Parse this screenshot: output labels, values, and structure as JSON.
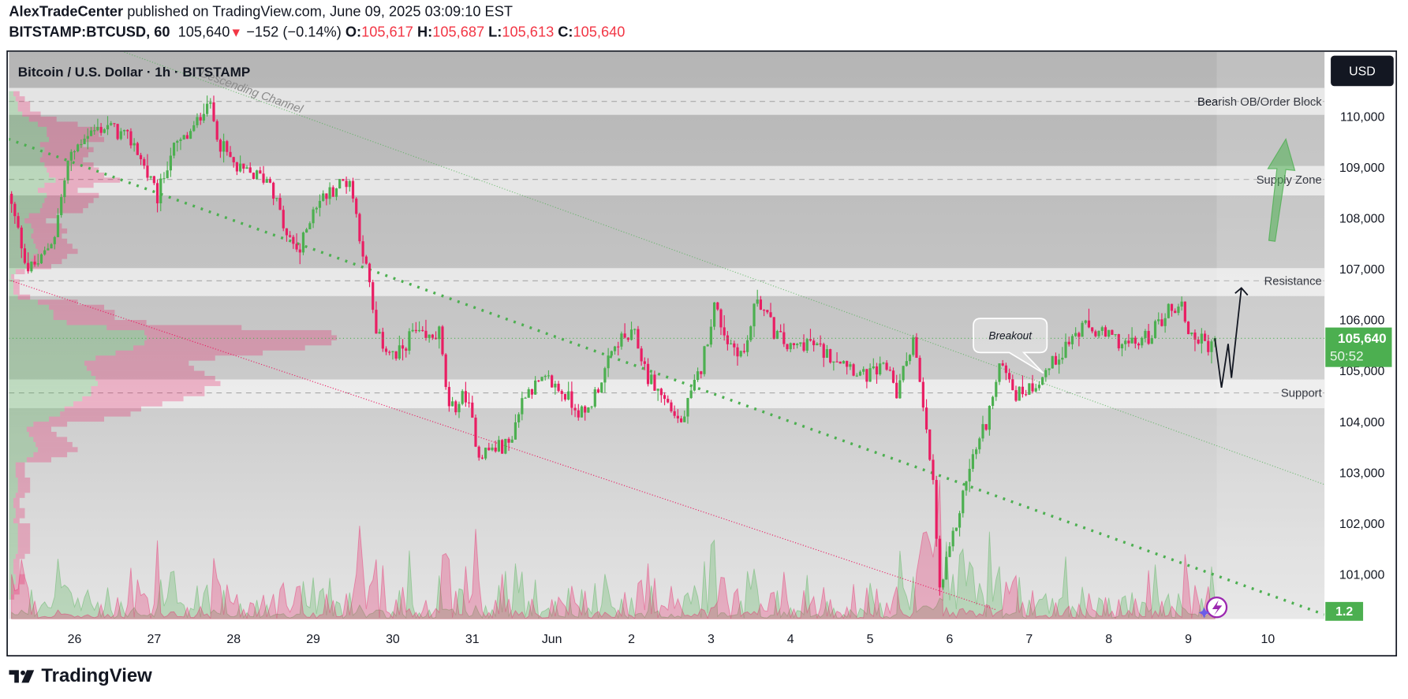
{
  "header": {
    "author": "AlexTradeCenter",
    "published": " published on TradingView.com, June 09, 2025 03:09:10 EST",
    "symbol": "BITSTAMP:BTCUSD, 60",
    "last": "105,640",
    "change": "−152 (−0.14%)",
    "o_label": "O:",
    "o": "105,617",
    "h_label": "H:",
    "h": "105,687",
    "l_label": "L:",
    "l": "105,613",
    "c_label": "C:",
    "c": "105,640"
  },
  "chart": {
    "title": "Bitcoin / U.S. Dollar · 1h · BITSTAMP",
    "currency_button": "USD",
    "channel_label": "Descending Channel",
    "breakout_label": "Breakout",
    "current_price": "105,640",
    "countdown": "50:52",
    "volume_label": "1.2"
  },
  "footer": {
    "logo": "TradingView"
  },
  "colors": {
    "up": "#4caf50",
    "down": "#e91e63",
    "header_red": "#f23645",
    "current_price_badge": "#4caf50",
    "currency_button_bg": "#131722",
    "assistant_icon": "#9c27b0"
  },
  "icons": [
    "tradingview-logo-icon",
    "lightning-assistant-icon",
    "down-triangle-icon",
    "up-arrow-icon"
  ],
  "chart_data": {
    "type": "candlestick",
    "interval": "1h",
    "ylim": [
      100300,
      111700
    ],
    "price_ticks": [
      "110,000",
      "109,000",
      "108,000",
      "107,000",
      "106,000",
      "105,000",
      "104,000",
      "103,000",
      "102,000",
      "101,000"
    ],
    "time_ticks": [
      "26",
      "27",
      "28",
      "29",
      "30",
      "31",
      "Jun",
      "2",
      "3",
      "4",
      "5",
      "6",
      "7",
      "8",
      "9",
      "10"
    ],
    "last_close": 105640,
    "price_path": [
      [
        "2025-05-25T05:00",
        108235
      ],
      [
        "2025-05-25T10:00",
        107000
      ],
      [
        "2025-05-25T14:00",
        107180
      ],
      [
        "2025-05-25T18:00",
        107700
      ],
      [
        "2025-05-25T22:00",
        109100
      ],
      [
        "2025-05-26T03:00",
        109650
      ],
      [
        "2025-05-26T10:00",
        109820
      ],
      [
        "2025-05-26T18:00",
        109470
      ],
      [
        "2025-05-27T01:00",
        108400
      ],
      [
        "2025-05-27T05:00",
        109300
      ],
      [
        "2025-05-27T12:00",
        109740
      ],
      [
        "2025-05-27T16:00",
        110350
      ],
      [
        "2025-05-27T20:00",
        109470
      ],
      [
        "2025-05-28T01:00",
        108940
      ],
      [
        "2025-05-28T11:00",
        108760
      ],
      [
        "2025-05-28T16:00",
        107620
      ],
      [
        "2025-05-28T20:00",
        107350
      ],
      [
        "2025-05-29T00:00",
        108240
      ],
      [
        "2025-05-29T08:00",
        108680
      ],
      [
        "2025-05-29T11:00",
        108760
      ],
      [
        "2025-05-29T14:00",
        107700
      ],
      [
        "2025-05-29T17:00",
        106650
      ],
      [
        "2025-05-29T19:00",
        105680
      ],
      [
        "2025-05-30T01:00",
        105240
      ],
      [
        "2025-05-30T06:00",
        105760
      ],
      [
        "2025-05-30T10:00",
        105590
      ],
      [
        "2025-05-30T14:00",
        105760
      ],
      [
        "2025-05-30T17:00",
        104180
      ],
      [
        "2025-05-30T22:00",
        104530
      ],
      [
        "2025-05-31T02:00",
        103380
      ],
      [
        "2025-05-31T11:00",
        103560
      ],
      [
        "2025-05-31T16:00",
        104620
      ],
      [
        "2025-05-31T23:00",
        104800
      ],
      [
        "2025-06-01T04:00",
        104530
      ],
      [
        "2025-06-01T10:00",
        104090
      ],
      [
        "2025-06-01T14:00",
        104710
      ],
      [
        "2025-06-01T20:00",
        105590
      ],
      [
        "2025-06-02T01:00",
        105680
      ],
      [
        "2025-06-02T05:00",
        104880
      ],
      [
        "2025-06-02T11:00",
        104350
      ],
      [
        "2025-06-02T15:00",
        103960
      ],
      [
        "2025-06-02T21:00",
        105060
      ],
      [
        "2025-06-03T01:00",
        106290
      ],
      [
        "2025-06-03T05:00",
        105590
      ],
      [
        "2025-06-03T10:00",
        105320
      ],
      [
        "2025-06-03T14:00",
        106470
      ],
      [
        "2025-06-03T19:00",
        105770
      ],
      [
        "2025-06-04T00:00",
        105410
      ],
      [
        "2025-06-04T05:00",
        105590
      ],
      [
        "2025-06-04T11:00",
        105320
      ],
      [
        "2025-06-04T16:00",
        105240
      ],
      [
        "2025-06-04T22:00",
        104880
      ],
      [
        "2025-06-05T06:00",
        105060
      ],
      [
        "2025-06-05T08:00",
        104530
      ],
      [
        "2025-06-05T13:00",
        105680
      ],
      [
        "2025-06-05T15:00",
        104710
      ],
      [
        "2025-06-05T19:00",
        102770
      ],
      [
        "2025-06-05T21:00",
        100650
      ],
      [
        "2025-06-06T01:00",
        101710
      ],
      [
        "2025-06-06T06:00",
        103120
      ],
      [
        "2025-06-06T11:00",
        104000
      ],
      [
        "2025-06-06T16:00",
        105240
      ],
      [
        "2025-06-06T20:00",
        104530
      ],
      [
        "2025-06-07T01:00",
        104710
      ],
      [
        "2025-06-07T06:00",
        105060
      ],
      [
        "2025-06-07T12:00",
        105590
      ],
      [
        "2025-06-07T17:00",
        105850
      ],
      [
        "2025-06-07T23:00",
        105680
      ],
      [
        "2025-06-08T07:00",
        105500
      ],
      [
        "2025-06-08T12:00",
        105680
      ],
      [
        "2025-06-08T18:00",
        106200
      ],
      [
        "2025-06-08T22:00",
        106290
      ],
      [
        "2025-06-09T00:00",
        105770
      ],
      [
        "2025-06-09T06:00",
        105500
      ],
      [
        "2025-06-09T08:00",
        105640
      ]
    ],
    "zones": [
      {
        "label": "Bearish OB/Order Block",
        "from": 110035,
        "to": 110565,
        "level": 110300
      },
      {
        "label": "Supply Zone",
        "from": 108450,
        "to": 109030,
        "level": 108765
      },
      {
        "label": "Resistance",
        "from": 106470,
        "to": 107020,
        "level": 106770
      },
      {
        "label": "Support",
        "from": 104265,
        "to": 104830,
        "level": 104565
      }
    ],
    "channel": {
      "upper": [
        [
          "2025-05-26T15:00",
          111270
        ],
        [
          "2025-06-10T17:00",
          102765
        ]
      ],
      "middle": [
        [
          "2025-05-25T04:00",
          109560
        ],
        [
          "2025-06-10T17:00",
          100206
        ]
      ],
      "lower": [
        [
          "2025-05-25T04:00",
          106790
        ],
        [
          "2025-06-06T14:00",
          100300
        ]
      ]
    },
    "projection": [
      [
        "2025-06-09T08:00",
        105640
      ],
      [
        "2025-06-09T10:00",
        104670
      ],
      [
        "2025-06-09T12:00",
        105530
      ],
      [
        "2025-06-09T13:00",
        104860
      ],
      [
        "2025-06-09T16:00",
        106630
      ]
    ]
  }
}
